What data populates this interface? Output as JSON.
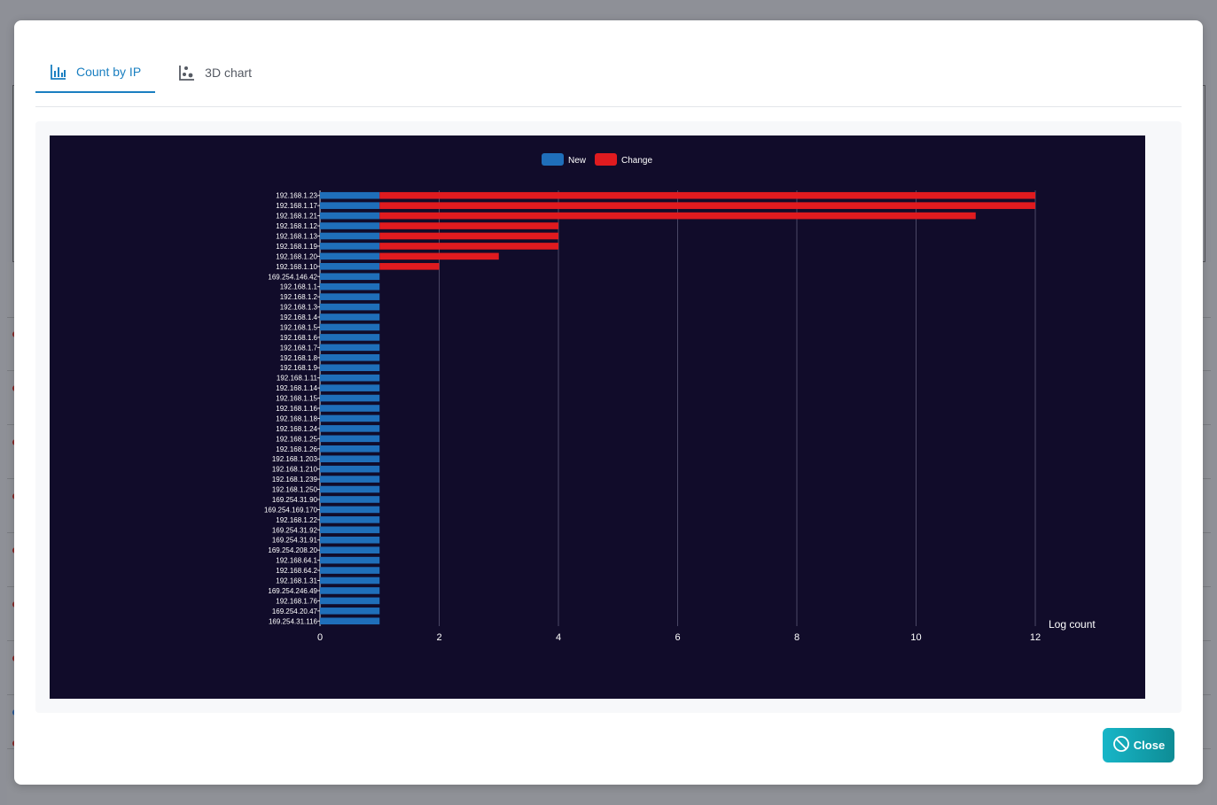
{
  "tabs": [
    {
      "label": "Count by IP",
      "icon": "bar-chart-icon",
      "active": true
    },
    {
      "label": "3D chart",
      "icon": "scatter-chart-icon",
      "active": false
    }
  ],
  "close_label": "Close",
  "colors": {
    "accent": "#1a7fc1",
    "chart_bg": "#110c2a",
    "series_new": "#1f6fba",
    "series_change": "#e01b1f",
    "close_gradient_start": "#17b6c8",
    "close_gradient_end": "#0e8c95"
  },
  "chart_data": {
    "type": "bar",
    "orientation": "horizontal",
    "stacked": true,
    "xlabel": "Log count",
    "xlim": [
      0,
      12
    ],
    "xticks": [
      0,
      2,
      4,
      6,
      8,
      10,
      12
    ],
    "grid": true,
    "legend": "top-center",
    "categories": [
      "192.168.1.23",
      "192.168.1.17",
      "192.168.1.21",
      "192.168.1.12",
      "192.168.1.13",
      "192.168.1.19",
      "192.168.1.20",
      "192.168.1.10",
      "169.254.146.42",
      "192.168.1.1",
      "192.168.1.2",
      "192.168.1.3",
      "192.168.1.4",
      "192.168.1.5",
      "192.168.1.6",
      "192.168.1.7",
      "192.168.1.8",
      "192.168.1.9",
      "192.168.1.11",
      "192.168.1.14",
      "192.168.1.15",
      "192.168.1.16",
      "192.168.1.18",
      "192.168.1.24",
      "192.168.1.25",
      "192.168.1.26",
      "192.168.1.203",
      "192.168.1.210",
      "192.168.1.239",
      "192.168.1.250",
      "169.254.31.90",
      "169.254.169.170",
      "192.168.1.22",
      "169.254.31.92",
      "169.254.31.91",
      "169.254.208.20",
      "192.168.64.1",
      "192.168.64.2",
      "192.168.1.31",
      "169.254.246.49",
      "192.168.1.76",
      "169.254.20.47",
      "169.254.31.116"
    ],
    "series": [
      {
        "name": "New",
        "values": [
          1,
          1,
          1,
          1,
          1,
          1,
          1,
          1,
          1,
          1,
          1,
          1,
          1,
          1,
          1,
          1,
          1,
          1,
          1,
          1,
          1,
          1,
          1,
          1,
          1,
          1,
          1,
          1,
          1,
          1,
          1,
          1,
          1,
          1,
          1,
          1,
          1,
          1,
          1,
          1,
          1,
          1,
          1
        ]
      },
      {
        "name": "Change",
        "values": [
          11,
          11,
          10,
          3,
          3,
          3,
          2,
          1,
          0,
          0,
          0,
          0,
          0,
          0,
          0,
          0,
          0,
          0,
          0,
          0,
          0,
          0,
          0,
          0,
          0,
          0,
          0,
          0,
          0,
          0,
          0,
          0,
          0,
          0,
          0,
          0,
          0,
          0,
          0,
          0,
          0,
          0,
          0
        ]
      }
    ]
  }
}
